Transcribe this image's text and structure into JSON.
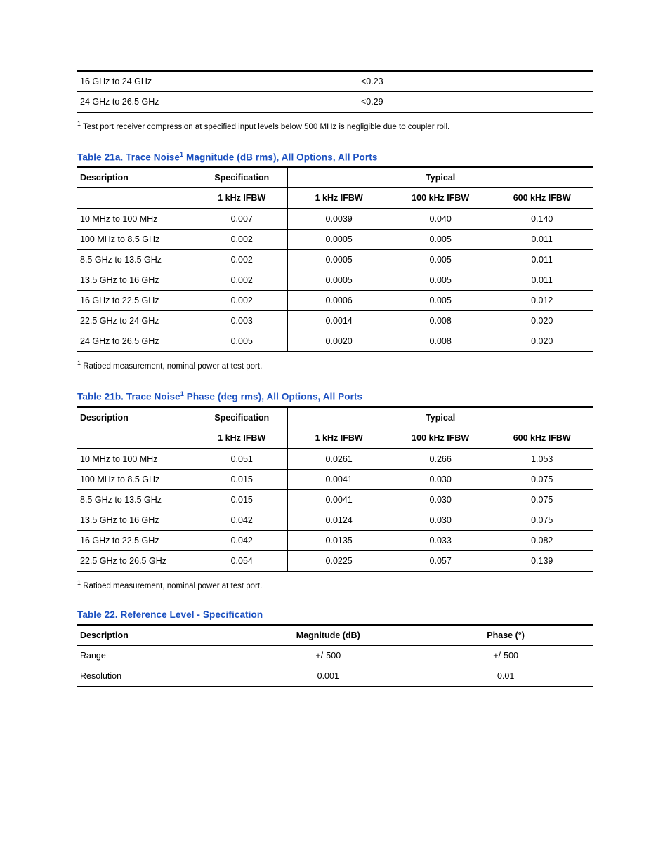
{
  "top_fragment": {
    "rows": [
      {
        "range": "16 GHz to 24 GHz",
        "value": "<0.23"
      },
      {
        "range": "24 GHz to 26.5 GHz",
        "value": "<0.29"
      }
    ],
    "footnote_num": "1",
    "footnote": "Test port receiver compression at specified input levels below 500 MHz is negligible due to coupler roll."
  },
  "table21a": {
    "caption_prefix": "Table 21a. Trace Noise",
    "caption_sup": "1",
    "caption_suffix": " Magnitude (dB rms), All Options, All Ports",
    "head": {
      "description": "Description",
      "specification": "Specification",
      "typical": "Typical",
      "spec_sub": "1 kHz IFBW",
      "typ_sub1": "1 kHz IFBW",
      "typ_sub2": "100 kHz IFBW",
      "typ_sub3": "600 kHz IFBW"
    },
    "rows": [
      {
        "range": "10 MHz to 100 MHz",
        "spec": "0.007",
        "t1": "0.0039",
        "t2": "0.040",
        "t3": "0.140"
      },
      {
        "range": "100 MHz to 8.5 GHz",
        "spec": "0.002",
        "t1": "0.0005",
        "t2": "0.005",
        "t3": "0.011"
      },
      {
        "range": "8.5 GHz to 13.5 GHz",
        "spec": "0.002",
        "t1": "0.0005",
        "t2": "0.005",
        "t3": "0.011"
      },
      {
        "range": "13.5 GHz to 16 GHz",
        "spec": "0.002",
        "t1": "0.0005",
        "t2": "0.005",
        "t3": "0.011"
      },
      {
        "range": "16 GHz to 22.5 GHz",
        "spec": "0.002",
        "t1": "0.0006",
        "t2": "0.005",
        "t3": "0.012"
      },
      {
        "range": "22.5 GHz to 24 GHz",
        "spec": "0.003",
        "t1": "0.0014",
        "t2": "0.008",
        "t3": "0.020"
      },
      {
        "range": "24 GHz to 26.5 GHz",
        "spec": "0.005",
        "t1": "0.0020",
        "t2": "0.008",
        "t3": "0.020"
      }
    ],
    "footnote_num": "1",
    "footnote": "Ratioed measurement, nominal power at test port."
  },
  "table21b": {
    "caption_prefix": "Table 21b. Trace Noise",
    "caption_sup": "1",
    "caption_suffix": " Phase (deg rms), All Options, All Ports",
    "head": {
      "description": "Description",
      "specification": "Specification",
      "typical": "Typical",
      "spec_sub": "1 kHz IFBW",
      "typ_sub1": "1 kHz IFBW",
      "typ_sub2": "100 kHz IFBW",
      "typ_sub3": "600 kHz IFBW"
    },
    "rows": [
      {
        "range": "10 MHz to 100 MHz",
        "spec": "0.051",
        "t1": "0.0261",
        "t2": "0.266",
        "t3": "1.053"
      },
      {
        "range": "100 MHz to 8.5 GHz",
        "spec": "0.015",
        "t1": "0.0041",
        "t2": "0.030",
        "t3": "0.075"
      },
      {
        "range": "8.5 GHz to 13.5 GHz",
        "spec": "0.015",
        "t1": "0.0041",
        "t2": "0.030",
        "t3": "0.075"
      },
      {
        "range": "13.5 GHz to 16 GHz",
        "spec": "0.042",
        "t1": "0.0124",
        "t2": "0.030",
        "t3": "0.075"
      },
      {
        "range": "16 GHz to 22.5 GHz",
        "spec": "0.042",
        "t1": "0.0135",
        "t2": "0.033",
        "t3": "0.082"
      },
      {
        "range": "22.5 GHz to 26.5 GHz",
        "spec": "0.054",
        "t1": "0.0225",
        "t2": "0.057",
        "t3": "0.139"
      }
    ],
    "footnote_num": "1",
    "footnote": "Ratioed measurement, nominal power at test port."
  },
  "table22": {
    "caption": "Table 22. Reference Level - Specification",
    "head": {
      "description": "Description",
      "magnitude": "Magnitude (dB)",
      "phase": "Phase (°)"
    },
    "rows": [
      {
        "desc": "Range",
        "mag": "+/-500",
        "phase": "+/-500"
      },
      {
        "desc": "Resolution",
        "mag": "0.001",
        "phase": "0.01"
      }
    ]
  },
  "colors": {
    "accent": "#1a4fc0",
    "text": "#000000",
    "background": "#ffffff",
    "rule": "#000000"
  }
}
